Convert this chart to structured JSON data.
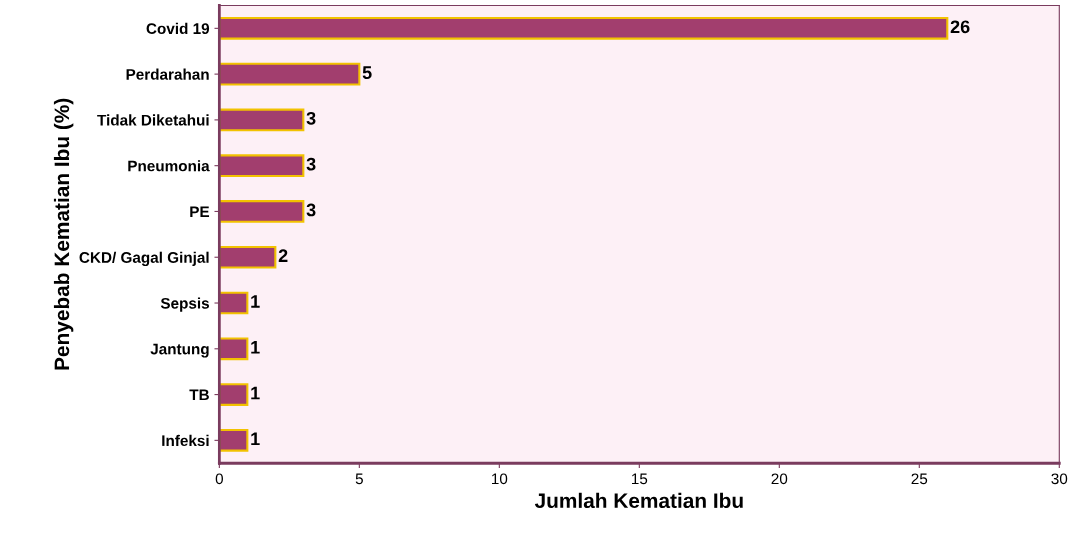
{
  "chart_data": {
    "type": "bar",
    "orientation": "horizontal",
    "xlabel": "Jumlah Kematian Ibu",
    "ylabel": "Penyebab Kematian Ibu (%)",
    "categories": [
      "Covid 19",
      "Perdarahan",
      "Tidak Diketahui",
      "Pneumonia",
      "PE",
      "CKD/ Gagal Ginjal",
      "Sepsis",
      "Jantung",
      "TB",
      "Infeksi"
    ],
    "values": [
      26,
      5,
      3,
      3,
      3,
      2,
      1,
      1,
      1,
      1
    ],
    "color": "#a23e6e",
    "xlim": [
      0,
      30
    ],
    "xticks": [
      0,
      5,
      10,
      15,
      20,
      25,
      30
    ],
    "data_labels": true,
    "grid": false
  }
}
